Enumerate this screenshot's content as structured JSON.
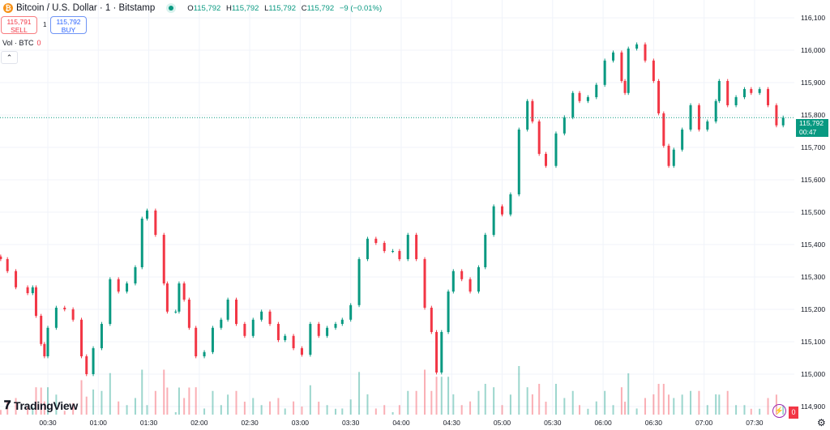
{
  "header": {
    "title": "Bitcoin / U.S. Dollar · 1 · Bitstamp",
    "icon": "bitcoin-icon",
    "ohlc": {
      "o_label": "O",
      "o": "115,792",
      "h_label": "H",
      "h": "115,792",
      "l_label": "L",
      "l": "115,792",
      "c_label": "C",
      "c": "115,792",
      "change": "−9 (−0.01%)"
    }
  },
  "trade": {
    "sell_price": "115,791",
    "sell_label": "SELL",
    "spread": "1",
    "buy_price": "115,792",
    "buy_label": "BUY"
  },
  "volume_indicator": {
    "label": "Vol · BTC",
    "value": "0"
  },
  "price_label": {
    "price": "115,792",
    "countdown": "00:47"
  },
  "brand": "TradingView",
  "volume_zero_badge": "0",
  "colors": {
    "up": "#089981",
    "down": "#f23645",
    "grid": "#f0f3fa",
    "last_price": "#089981"
  },
  "chart_data": {
    "type": "candlestick",
    "title": "Bitcoin / U.S. Dollar · 1 · Bitstamp",
    "ylim": [
      114900,
      116100
    ],
    "y_ticks": [
      "116,100",
      "116,000",
      "115,900",
      "115,800",
      "115,700",
      "115,600",
      "115,500",
      "115,400",
      "115,300",
      "115,200",
      "115,100",
      "115,000",
      "114,900"
    ],
    "y_tick_values": [
      116100,
      116000,
      115900,
      115800,
      115700,
      115600,
      115500,
      115400,
      115300,
      115200,
      115100,
      115000,
      114900
    ],
    "x_ticks": [
      "00:30",
      "01:00",
      "01:30",
      "02:00",
      "02:30",
      "03:00",
      "03:30",
      "04:00",
      "04:30",
      "05:00",
      "05:30",
      "06:00",
      "06:30",
      "07:00",
      "07:30"
    ],
    "grid": true,
    "last_price": 115792,
    "series": [
      {
        "t": [
          "00:02",
          "00:06",
          "00:11",
          "00:18",
          "00:21",
          "00:23",
          "00:26",
          "00:28",
          "00:30",
          "00:35",
          "00:40",
          "00:45",
          "00:50",
          "00:53",
          "00:57",
          "01:02",
          "01:07",
          "01:12",
          "01:17",
          "01:22",
          "01:26",
          "01:29",
          "01:34",
          "01:39",
          "01:41",
          "01:46",
          "01:48",
          "01:51",
          "01:54",
          "01:58",
          "02:03",
          "02:08",
          "02:13",
          "02:17",
          "02:22",
          "02:27",
          "02:32",
          "02:37",
          "02:42",
          "02:47",
          "02:51",
          "02:56",
          "03:01",
          "03:06",
          "03:11",
          "03:16",
          "03:21",
          "03:25",
          "03:30",
          "03:35",
          "03:40",
          "03:45",
          "03:50",
          "03:55",
          "03:59",
          "04:04",
          "04:09",
          "04:14",
          "04:18",
          "04:21",
          "04:24",
          "04:28",
          "04:31",
          "04:36",
          "04:41",
          "04:46",
          "04:50",
          "04:55",
          "05:00",
          "05:05",
          "05:10",
          "05:15",
          "05:18",
          "05:22",
          "05:26",
          "05:32",
          "05:37",
          "05:42",
          "05:46",
          "05:51",
          "05:56",
          "06:01",
          "06:06",
          "06:11",
          "06:13",
          "06:15",
          "06:20",
          "06:25",
          "06:30",
          "06:33",
          "06:36",
          "06:39",
          "06:42",
          "06:47",
          "06:52",
          "06:57",
          "07:02",
          "07:07",
          "07:09",
          "07:14",
          "07:19",
          "07:24",
          "07:28",
          "07:33",
          "07:38",
          "07:43",
          "07:47"
        ],
        "close": [
          115355,
          115318,
          115268,
          115250,
          115268,
          115180,
          115093,
          115055,
          115143,
          115205,
          115200,
          115168,
          115055,
          115000,
          115080,
          115155,
          115293,
          115255,
          115280,
          115330,
          115480,
          115505,
          115430,
          115280,
          115193,
          115193,
          115280,
          115230,
          115143,
          115055,
          115068,
          115143,
          115168,
          115230,
          115155,
          115118,
          115168,
          115193,
          115155,
          115105,
          115118,
          115080,
          115060,
          115155,
          115118,
          115143,
          115155,
          115168,
          115213,
          115355,
          115418,
          115405,
          115380,
          115380,
          115355,
          115430,
          115355,
          115205,
          115130,
          115005,
          115130,
          115255,
          115318,
          115293,
          115255,
          115330,
          115430,
          115518,
          115493,
          115555,
          115755,
          115843,
          115780,
          115680,
          115643,
          115743,
          115793,
          115868,
          115843,
          115855,
          115893,
          115968,
          115993,
          115905,
          115868,
          116005,
          116018,
          115968,
          115905,
          115805,
          115705,
          115643,
          115693,
          115755,
          115830,
          115755,
          115780,
          115843,
          115905,
          115830,
          115855,
          115880,
          115868,
          115880,
          115830,
          115768,
          115792
        ]
      }
    ]
  }
}
